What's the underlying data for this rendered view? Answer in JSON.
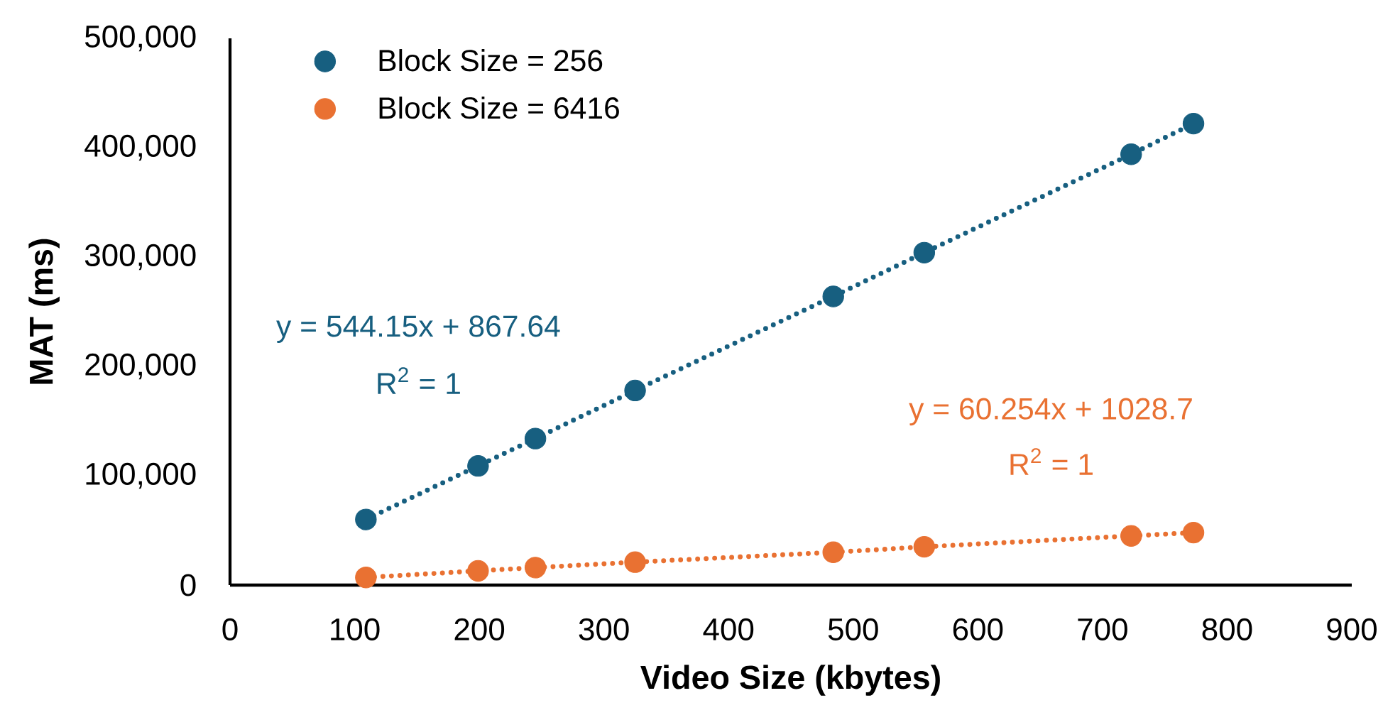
{
  "chart_data": {
    "type": "scatter",
    "xlabel": "Video Size (kbytes)",
    "ylabel": "MAT (ms)",
    "x": [
      109,
      199,
      245,
      325,
      484,
      557,
      723,
      773
    ],
    "series": [
      {
        "name": "Block Size = 256",
        "color": "#175f80",
        "values": [
          60000,
          109000,
          134000,
          178000,
          264000,
          304000,
          394000,
          422000
        ]
      },
      {
        "name": "Block Size = 6416",
        "color": "#e97132",
        "values": [
          7000,
          13000,
          16000,
          21000,
          30000,
          35000,
          45000,
          48000
        ]
      },
      {
        "type": "line",
        "color": "#175f80",
        "values": [
          60000,
          109000,
          134000,
          178000,
          264000,
          304000,
          394000,
          422000
        ],
        "marker": "none",
        "line_style": "dotted"
      },
      {
        "type": "line",
        "color": "#e97132",
        "values": [
          7000,
          13000,
          16000,
          21000,
          30000,
          35000,
          45000,
          48000
        ],
        "marker": "none",
        "line_style": "dotted"
      }
    ],
    "annotations": [
      "y = 544.15x + 867.64",
      "R$^{2}$ = 1",
      "y = 60.254x + 1028.7",
      "R$^{2}$ = 1"
    ],
    "xlim": [
      0,
      900
    ],
    "ylim": [
      0,
      500000
    ],
    "xticks": [
      0,
      100,
      200,
      300,
      400,
      500,
      600,
      700,
      800,
      900
    ],
    "yticks": [
      {
        "value": 0,
        "label": "0"
      },
      {
        "value": 100000,
        "label": "100,000"
      },
      {
        "value": 200000,
        "label": "200,000"
      },
      {
        "value": 300000,
        "label": "300,000"
      },
      {
        "value": 400000,
        "label": "400,000"
      },
      {
        "value": 500000,
        "label": "500,000"
      }
    ],
    "marker": "circle",
    "legend": "top left",
    "grid": false
  }
}
